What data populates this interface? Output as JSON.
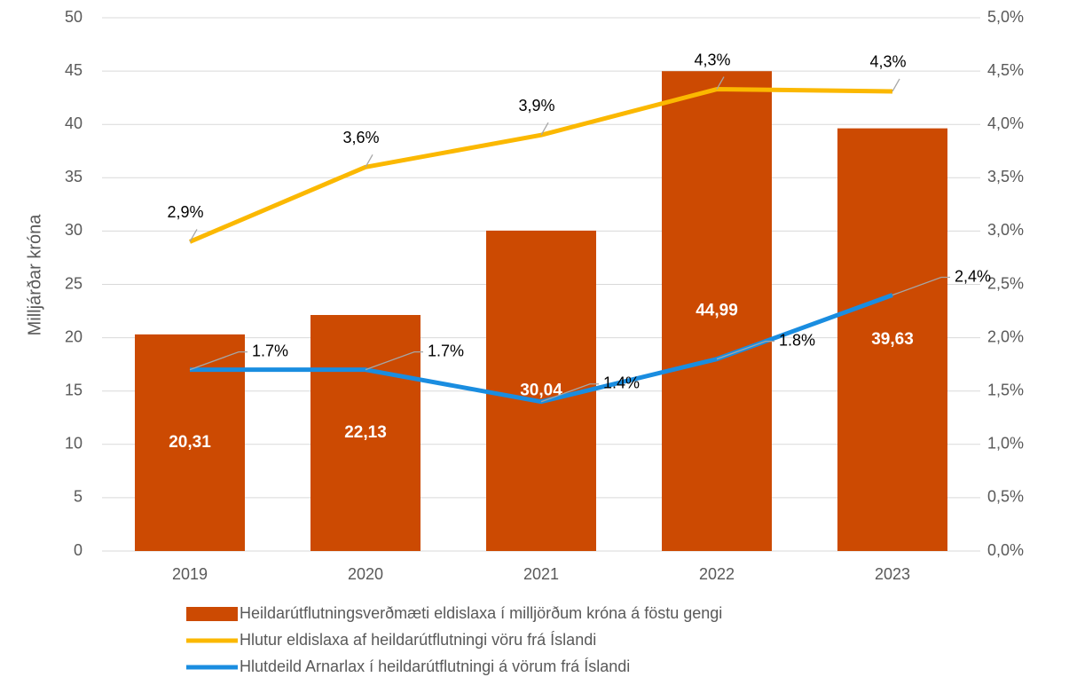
{
  "chart_data": {
    "type": "bar",
    "ylabel": "Milljárðar króna",
    "categories": [
      "2019",
      "2020",
      "2021",
      "2022",
      "2023"
    ],
    "series": [
      {
        "name": "Heildarútflutningsverðmæti eldislaxa í milljörðum króna á föstu gengi",
        "type": "bar",
        "color": "#cc4a02",
        "values": [
          20.31,
          22.13,
          30.04,
          44.99,
          39.63
        ],
        "value_labels": [
          "20,31",
          "22,13",
          "30,04",
          "44,99",
          "39,63"
        ]
      },
      {
        "name": "Hlutur eldislaxa af heildarútflutningi vöru frá Íslandi",
        "type": "line",
        "axis": "y2",
        "color": "#fbb800",
        "values": [
          2.9,
          3.6,
          3.9,
          4.33,
          4.31
        ],
        "value_labels": [
          "2,9%",
          "3,6%",
          "3,9%",
          "4,3%",
          "4,3%"
        ]
      },
      {
        "name": "Hlutdeild Arnarlax í heildarútflutningi á vörum frá Íslandi",
        "type": "line",
        "axis": "y2",
        "color": "#1a8de0",
        "values": [
          1.7,
          1.7,
          1.4,
          1.8,
          2.4
        ],
        "value_labels": [
          "1.7%",
          "1.7%",
          "1.4%",
          "1.8%",
          "2,4%"
        ]
      }
    ],
    "ylim": [
      0,
      50
    ],
    "yticks": [
      0,
      5,
      10,
      15,
      20,
      25,
      30,
      35,
      40,
      45,
      50
    ],
    "y2lim": [
      0,
      5
    ],
    "y2ticks": [
      {
        "value": 0,
        "label": "0,0%"
      },
      {
        "value": 0.5,
        "label": "0,5%"
      },
      {
        "value": 1,
        "label": "1,0%"
      },
      {
        "value": 1.5,
        "label": "1,5%"
      },
      {
        "value": 2,
        "label": "2,0%"
      },
      {
        "value": 2.5,
        "label": "2,5%"
      },
      {
        "value": 3,
        "label": "3,0%"
      },
      {
        "value": 3.5,
        "label": "3,5%"
      },
      {
        "value": 4,
        "label": "4,0%"
      },
      {
        "value": 4.5,
        "label": "4,5%"
      },
      {
        "value": 5,
        "label": "5,0%"
      }
    ],
    "grid": true,
    "legend": "bottom"
  }
}
